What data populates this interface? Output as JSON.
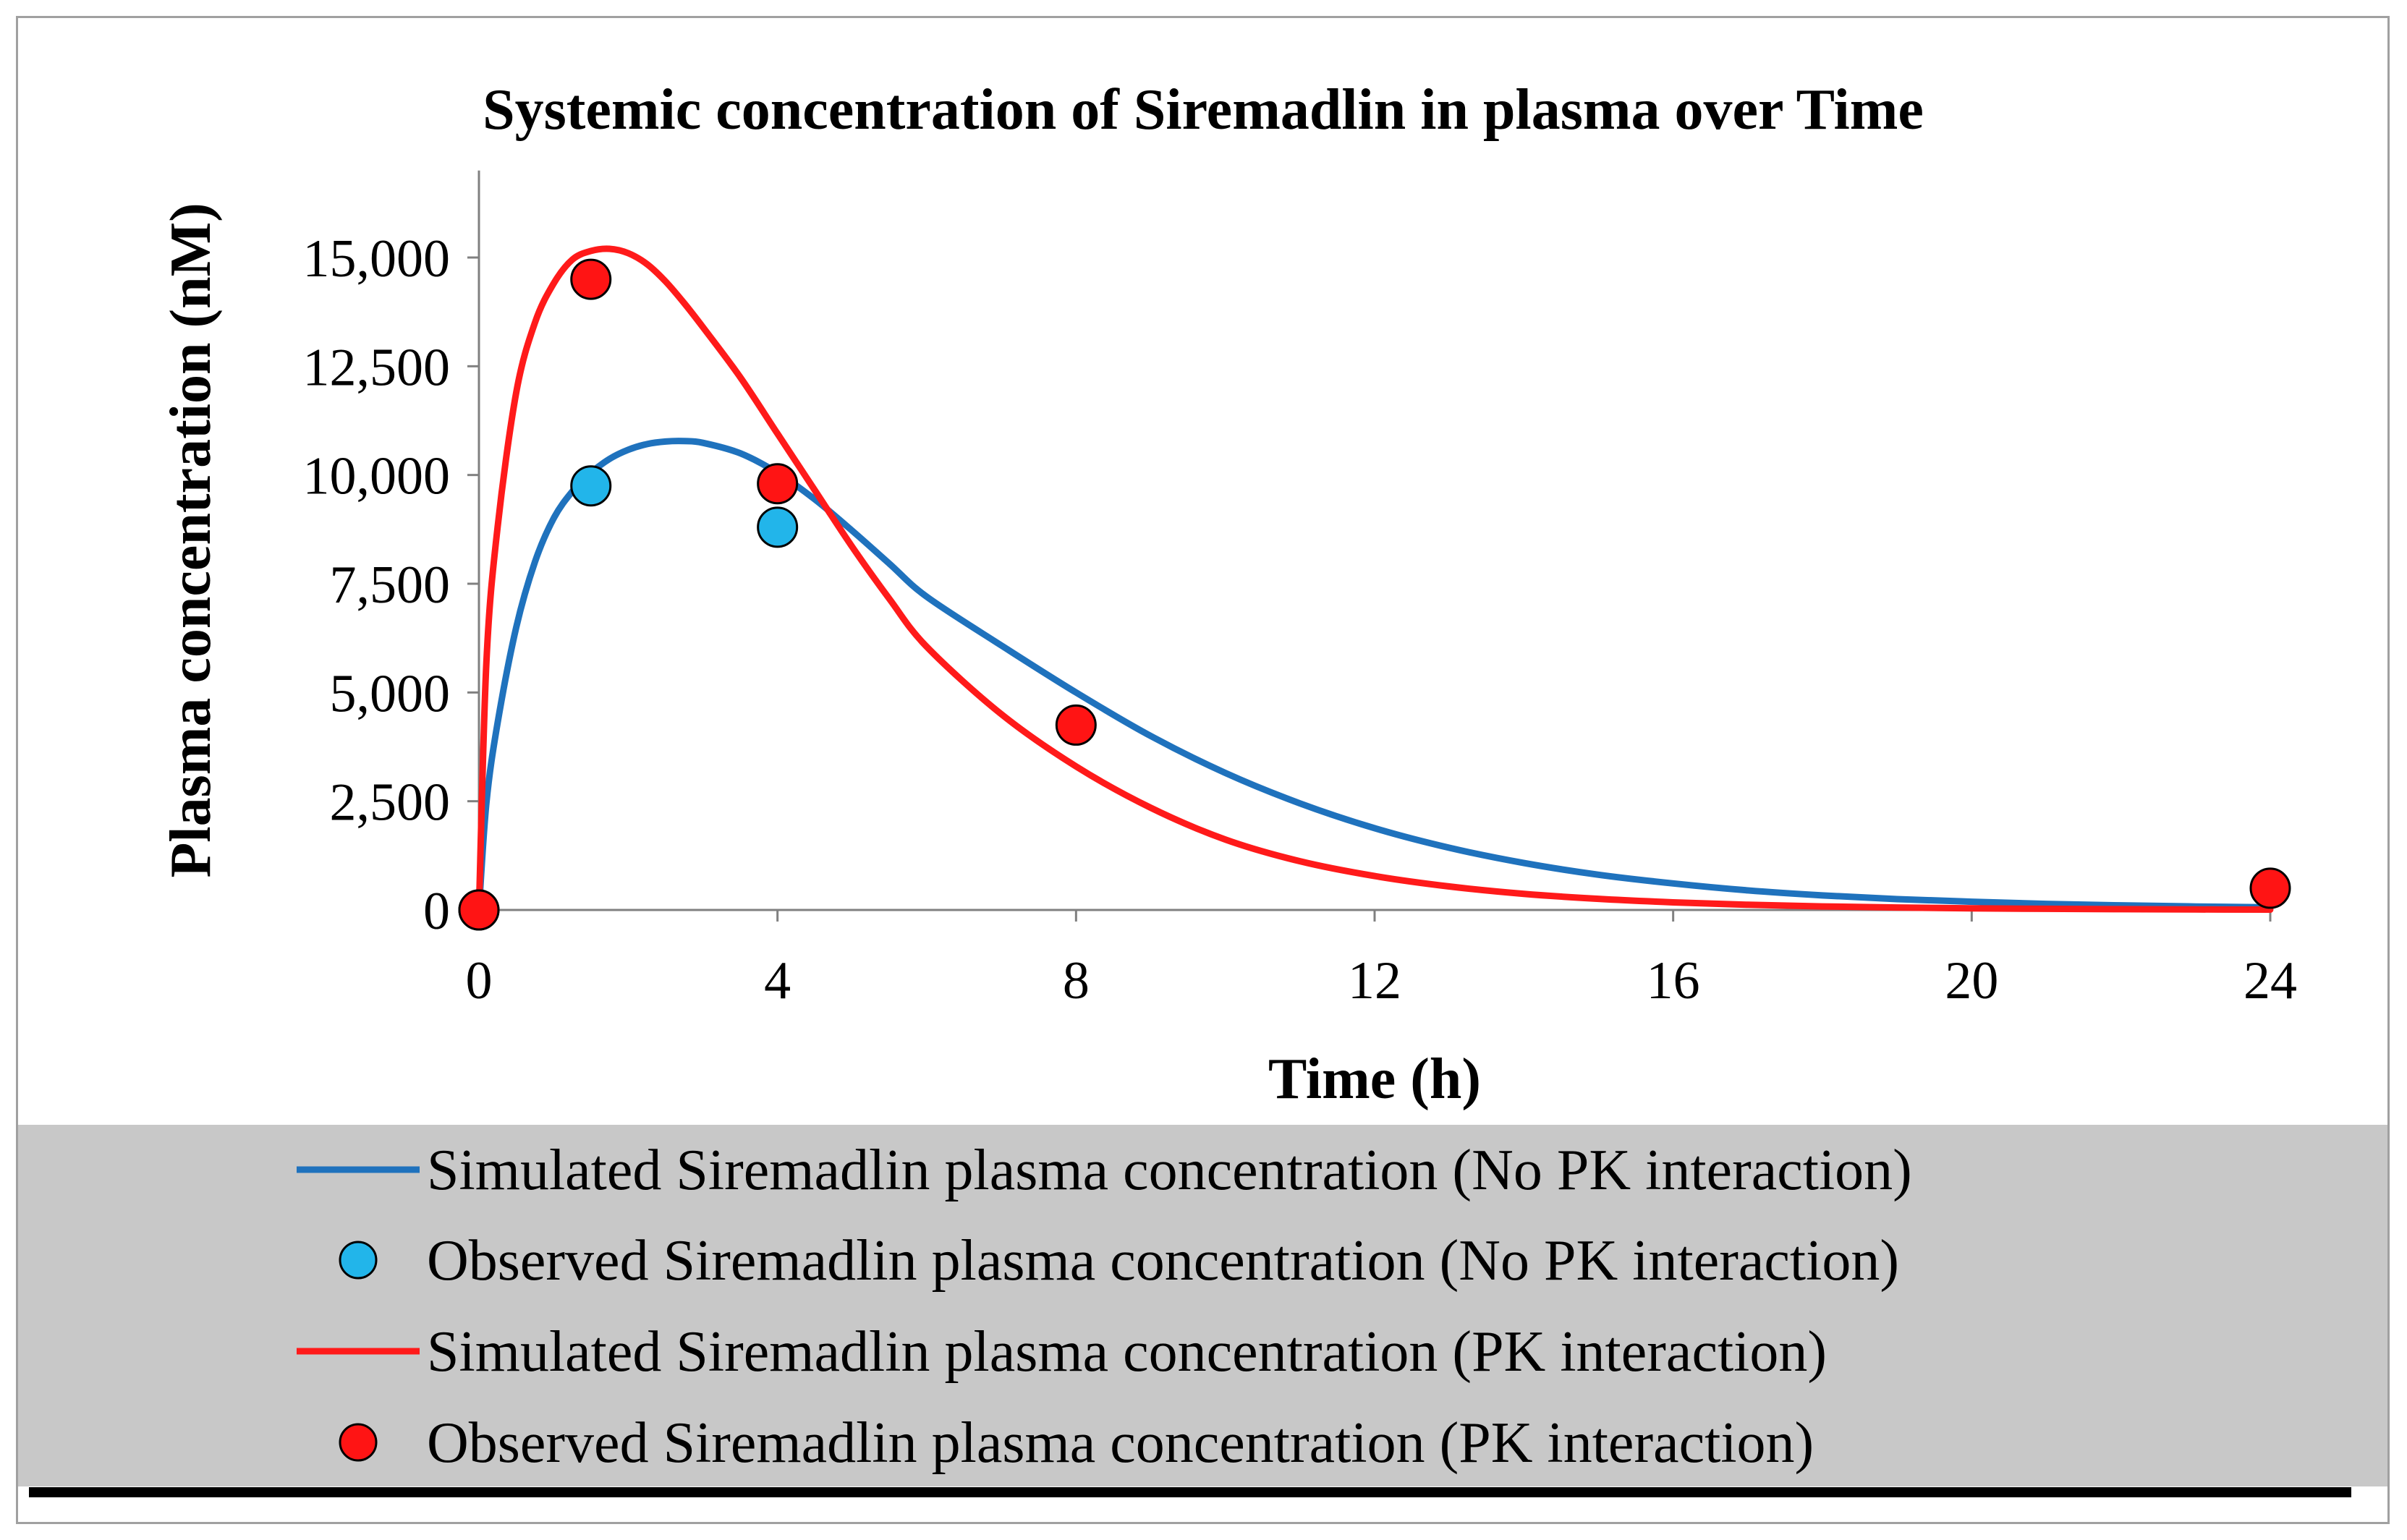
{
  "chart_data": {
    "type": "line",
    "title": "Systemic concentration of Siremadlin in plasma over Time",
    "xlabel": "Time (h)",
    "ylabel": "Plasma concentration (nM)",
    "xlim": [
      0,
      24
    ],
    "ylim": [
      0,
      17000
    ],
    "x_ticks": [
      0,
      4,
      8,
      12,
      16,
      20,
      24
    ],
    "x_tick_labels": [
      "0",
      "4",
      "8",
      "12",
      "16",
      "20",
      "24"
    ],
    "y_ticks": [
      0,
      2500,
      5000,
      7500,
      10000,
      12500,
      15000
    ],
    "y_tick_labels": [
      "0",
      "2,500",
      "5,000",
      "7,500",
      "10,000",
      "12,500",
      "15,000"
    ],
    "grid": false,
    "legend_position": "bottom",
    "series": [
      {
        "name": "Simulated Siremadlin plasma concentration (No PK interaction)",
        "kind": "line",
        "color": "#1f72bd",
        "x": [
          0,
          0.1,
          0.25,
          0.5,
          0.75,
          1,
          1.25,
          1.5,
          1.75,
          2,
          2.25,
          2.5,
          2.75,
          3,
          3.5,
          4,
          4.5,
          5,
          5.5,
          6,
          7,
          8,
          9,
          10,
          11,
          12,
          13,
          14,
          15,
          16,
          17,
          18,
          19,
          20,
          21,
          22,
          23,
          24
        ],
        "values": [
          0,
          2460,
          4300,
          6500,
          8000,
          9000,
          9620,
          10050,
          10370,
          10580,
          10710,
          10770,
          10780,
          10740,
          10500,
          10050,
          9440,
          8720,
          7960,
          7200,
          6080,
          5000,
          4000,
          3150,
          2450,
          1880,
          1430,
          1080,
          810,
          610,
          450,
          335,
          250,
          190,
          140,
          105,
          80,
          60
        ]
      },
      {
        "name": "Observed Siremadlin plasma concentration (No PK interaction)",
        "kind": "scatter",
        "color": "#22b5ea",
        "x": [
          0,
          1.5,
          4
        ],
        "values": [
          0,
          9750,
          8800
        ]
      },
      {
        "name": "Simulated Siremadlin plasma concentration (PK interaction)",
        "kind": "line",
        "color": "#ff1a1a",
        "x": [
          0,
          0.1,
          0.25,
          0.5,
          0.75,
          1,
          1.25,
          1.5,
          1.75,
          2,
          2.25,
          2.5,
          2.75,
          3,
          3.5,
          4,
          4.5,
          5,
          5.5,
          6,
          7,
          8,
          9,
          10,
          11,
          12,
          13,
          14,
          15,
          16,
          17,
          18,
          19,
          20,
          21,
          22,
          23,
          24
        ],
        "values": [
          0,
          5700,
          8800,
          11900,
          13500,
          14400,
          14950,
          15150,
          15200,
          15100,
          14850,
          14450,
          13950,
          13400,
          12250,
          10950,
          9650,
          8350,
          7150,
          6050,
          4500,
          3300,
          2350,
          1620,
          1120,
          780,
          540,
          370,
          255,
          175,
          120,
          82,
          56,
          38,
          26,
          18,
          12,
          8
        ]
      },
      {
        "name": "Observed Siremadlin plasma concentration (PK interaction)",
        "kind": "scatter",
        "color": "#ff1414",
        "x": [
          0,
          1.5,
          4,
          8,
          24
        ],
        "values": [
          0,
          14500,
          9800,
          4250,
          500
        ]
      }
    ]
  }
}
